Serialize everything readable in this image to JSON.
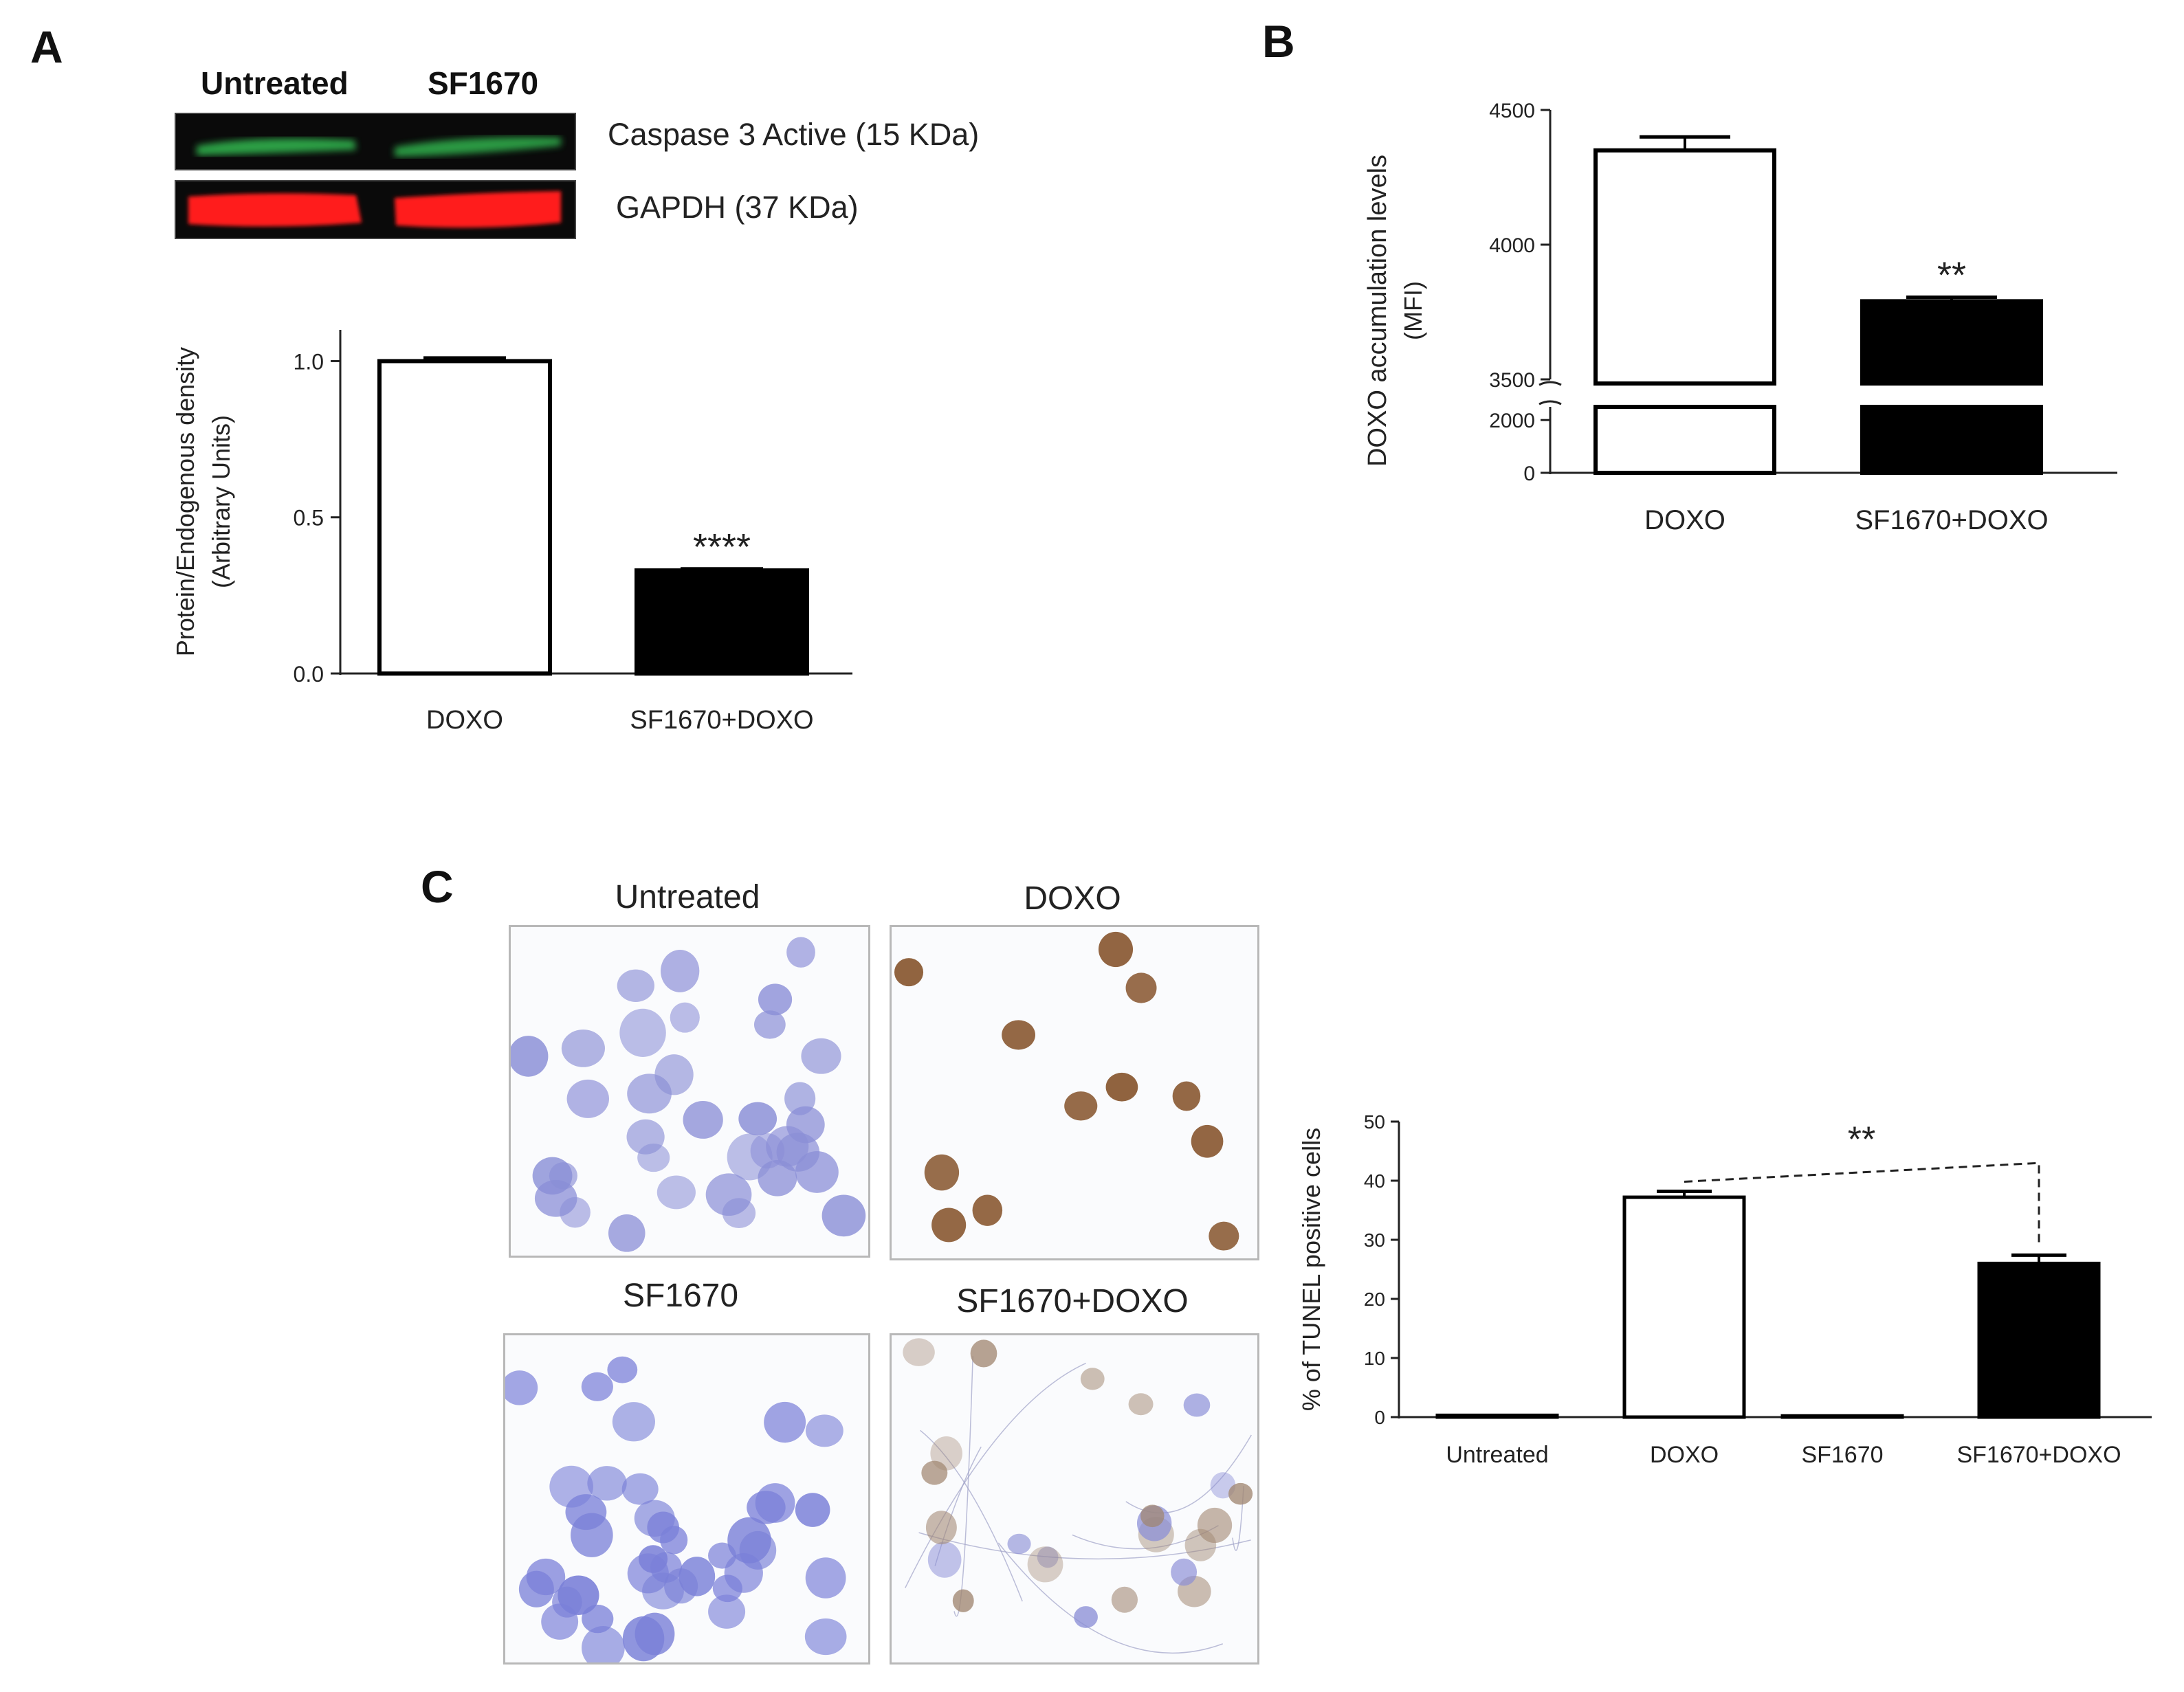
{
  "panels": {
    "a": {
      "label": "A"
    },
    "b": {
      "label": "B"
    },
    "c": {
      "label": "C"
    }
  },
  "western_blot": {
    "lanes": [
      "Untreated",
      "SF1670"
    ],
    "bands": [
      {
        "name": "Caspase 3 Active (15 KDa)",
        "color": "#2fa84a"
      },
      {
        "name": "GAPDH (37 KDa)",
        "color": "#ff1d1d"
      }
    ]
  },
  "micrographs": [
    {
      "title": "Untreated",
      "stain": "#8a8ed6"
    },
    {
      "title": "DOXO",
      "stain": "#8a5a34"
    },
    {
      "title": "SF1670",
      "stain": "#7a80d8"
    },
    {
      "title": "SF1670+DOXO",
      "stain": "#a08670"
    }
  ],
  "chart_data": [
    {
      "id": "A",
      "type": "bar",
      "categories": [
        "DOXO",
        "SF1670+DOXO"
      ],
      "values": [
        1.0,
        0.33
      ],
      "errors": [
        0.01,
        0.005
      ],
      "bar_fill": [
        "#ffffff",
        "#000000"
      ],
      "ylabel": "Protein/Endogenous density",
      "ylabel2": "(Arbitrary Units)",
      "ylim": [
        0,
        1.1
      ],
      "yticks": [
        "0.0",
        "0.5",
        "1.0"
      ],
      "significance": [
        "",
        "****"
      ]
    },
    {
      "id": "B",
      "type": "bar",
      "categories": [
        "DOXO",
        "SF1670+DOXO"
      ],
      "values": [
        4350,
        3790
      ],
      "errors": [
        50,
        15
      ],
      "bar_fill": [
        "#ffffff",
        "#000000"
      ],
      "ylabel": "DOXO accumulation levels",
      "ylabel2": "(MFI)",
      "axis_break": {
        "lower": [
          0,
          2500
        ],
        "upper": [
          3500,
          4500
        ]
      },
      "yticks": [
        "0",
        "2000",
        "3500",
        "4000",
        "4500"
      ],
      "significance": [
        "",
        "**"
      ]
    },
    {
      "id": "C",
      "type": "bar",
      "categories": [
        "Untreated",
        "DOXO",
        "SF1670",
        "SF1670+DOXO"
      ],
      "values": [
        0.3,
        37.2,
        0.2,
        26.0
      ],
      "errors": [
        0,
        1.0,
        0,
        1.4
      ],
      "bar_fill": [
        "#000000",
        "#ffffff",
        "#ffffff",
        "#000000"
      ],
      "ylabel": "% of TUNEL positive cells",
      "ylim": [
        0,
        50
      ],
      "yticks": [
        "0",
        "10",
        "20",
        "30",
        "40",
        "50"
      ],
      "comparison": {
        "from": "DOXO",
        "to": "SF1670+DOXO",
        "label": "**"
      }
    }
  ]
}
